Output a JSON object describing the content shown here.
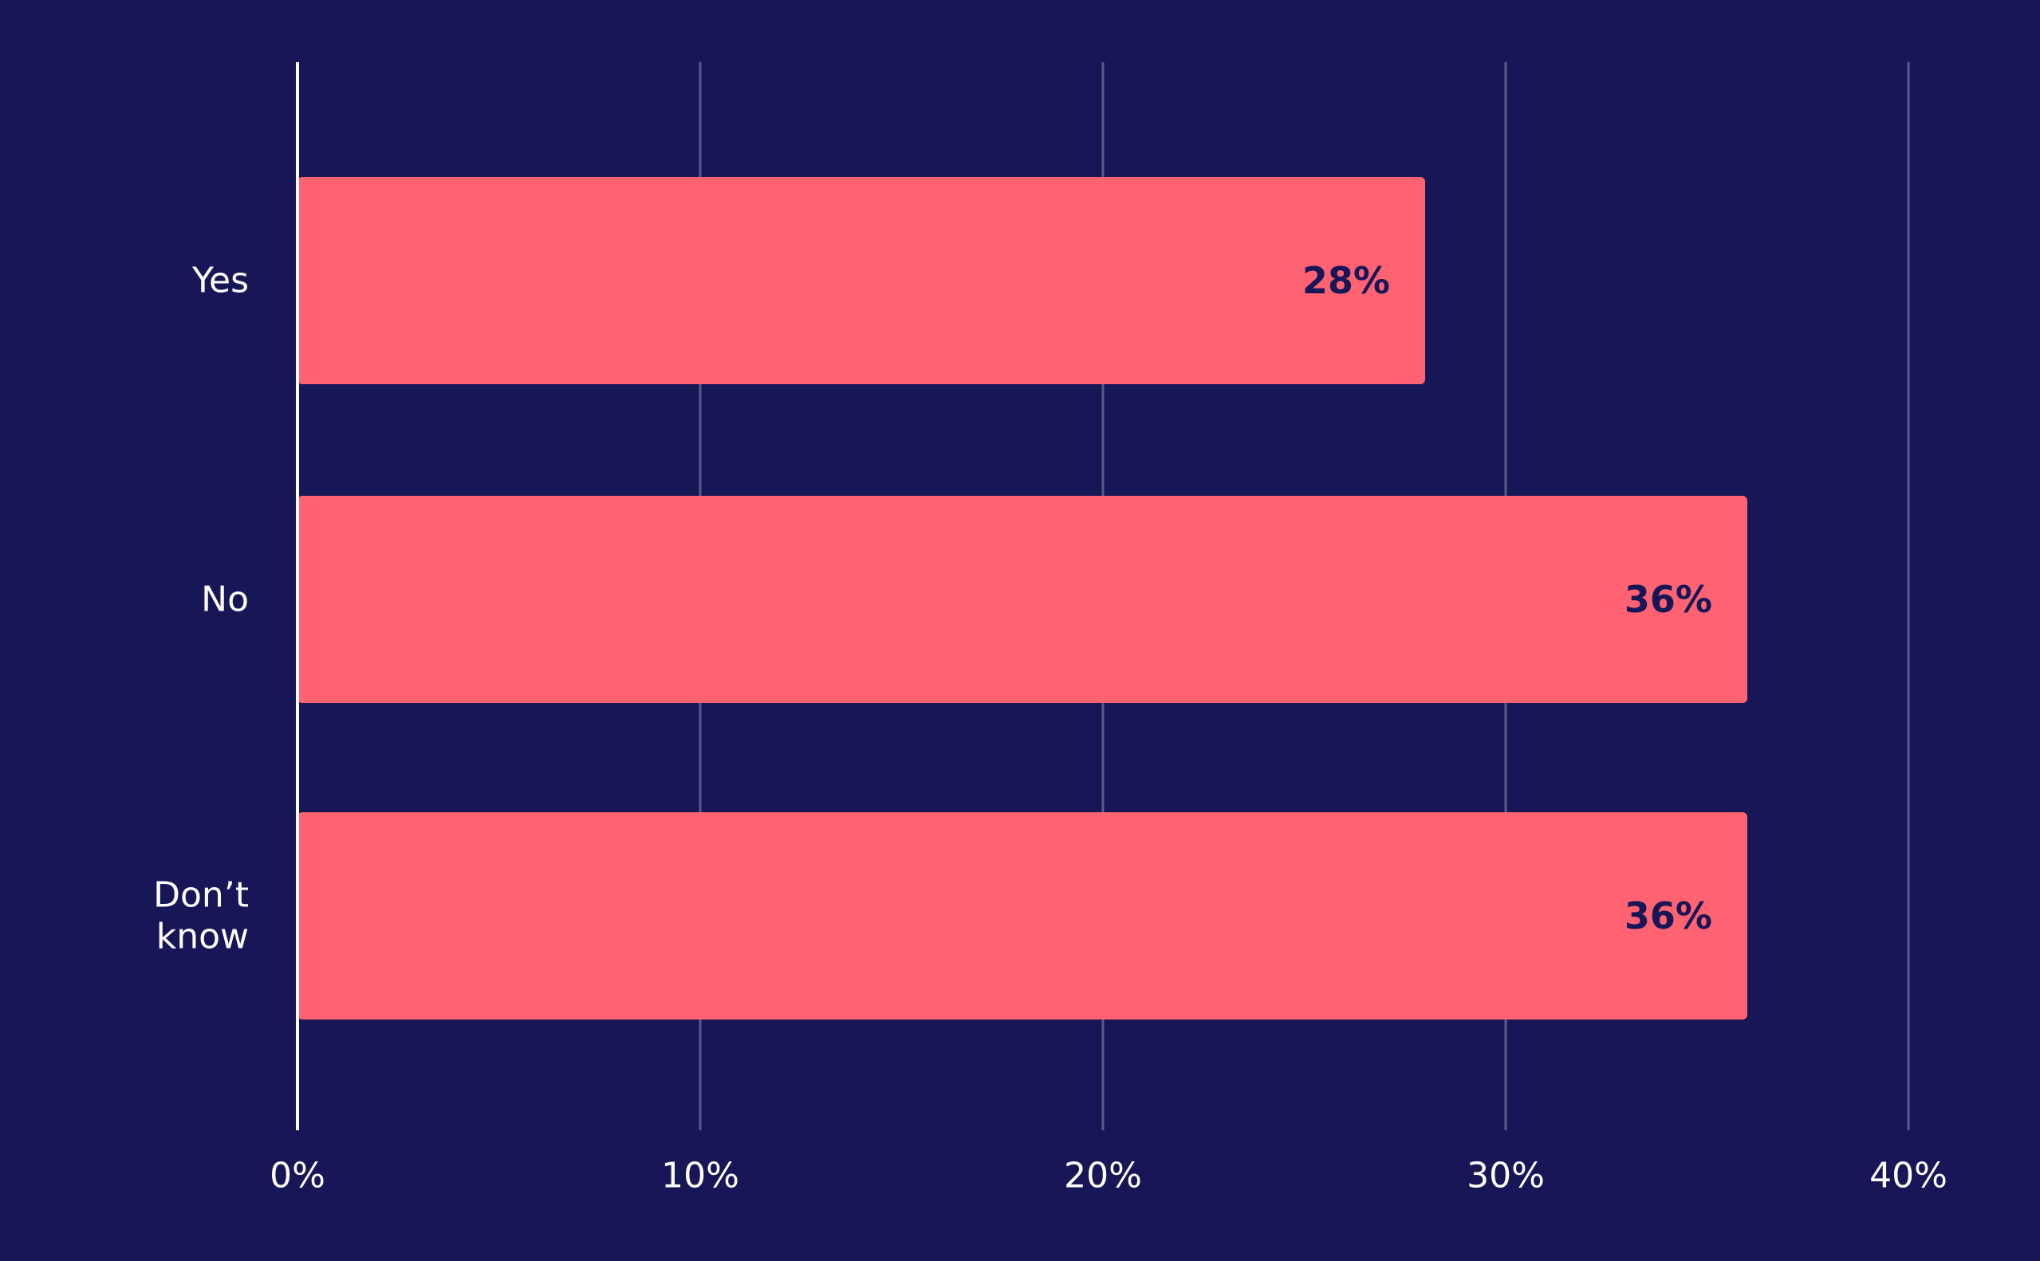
{
  "chart_data": {
    "type": "bar",
    "orientation": "horizontal",
    "categories": [
      "Yes",
      "No",
      "Don’t know"
    ],
    "category_lines": [
      [
        "Yes"
      ],
      [
        "No"
      ],
      [
        "Don’t",
        "know"
      ]
    ],
    "values": [
      28,
      36,
      36
    ],
    "value_labels": [
      "28%",
      "36%",
      "36%"
    ],
    "xlim": [
      0,
      40
    ],
    "x_ticks": [
      0,
      10,
      20,
      30,
      40
    ],
    "x_tick_labels": [
      "0%",
      "10%",
      "20%",
      "30%",
      "40%"
    ],
    "title": "",
    "xlabel": "",
    "ylabel": "",
    "grid": true,
    "legend": "none",
    "colors": {
      "background": "#171656",
      "bar": "#FF6372",
      "gridline": "#5A5A8E",
      "axis": "#FFFFFF",
      "text": "#FFFFFF",
      "data_label": "#171656"
    }
  }
}
